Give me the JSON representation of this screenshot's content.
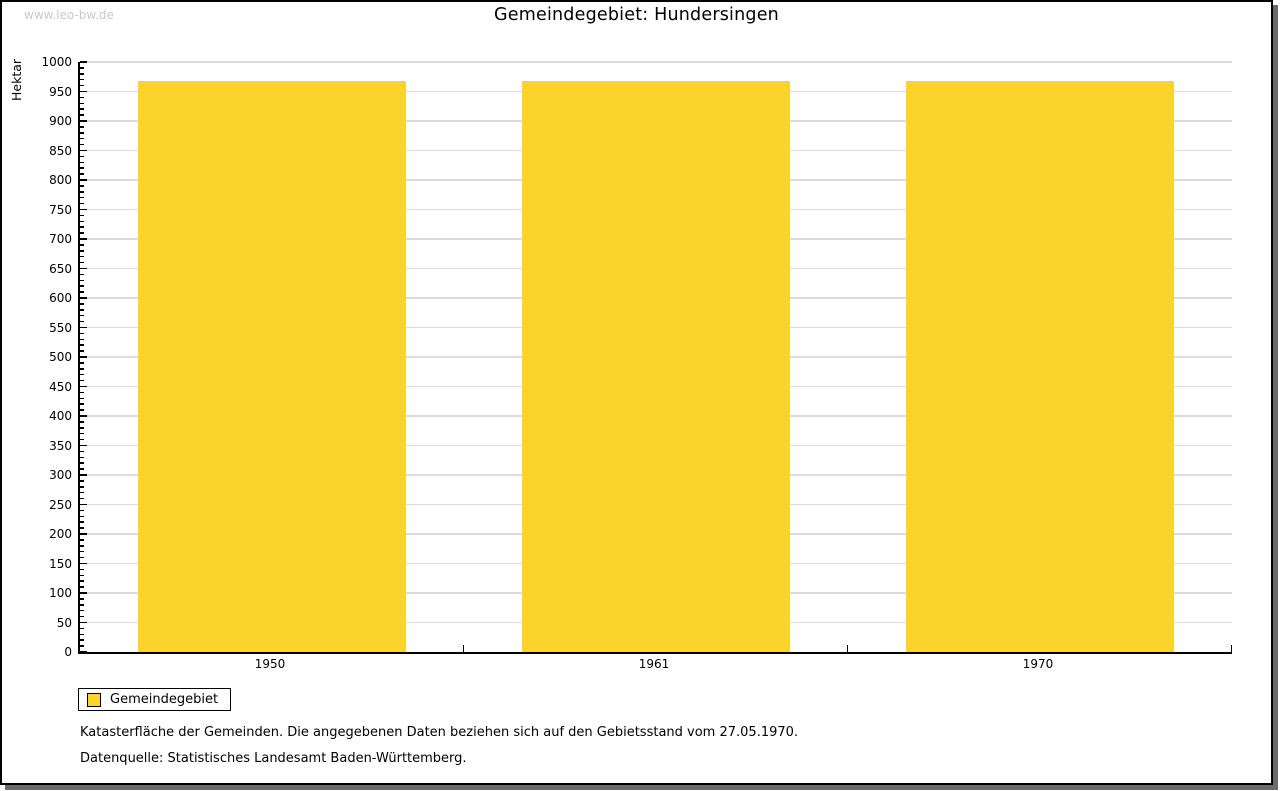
{
  "watermark": "www.leo-bw.de",
  "chart_data": {
    "type": "bar",
    "title": "Gemeindegebiet: Hundersingen",
    "ylabel": "Hektar",
    "xlabel": "",
    "categories": [
      "1950",
      "1961",
      "1970"
    ],
    "series": [
      {
        "name": "Gemeindegebiet",
        "color": "#fcd32b",
        "values": [
          968,
          968,
          968
        ]
      }
    ],
    "ylim": [
      0,
      1000
    ],
    "ytick_step": 50,
    "yminor_step": 10,
    "grid": true,
    "legend_position": "bottom-left"
  },
  "notes": [
    "Katasterfläche der Gemeinden. Die angegebenen Daten beziehen sich auf den Gebietsstand vom 27.05.1970.",
    "Datenquelle: Statistisches Landesamt Baden-Württemberg."
  ],
  "colors": {
    "bar": "#fcd32b",
    "grid": "#dcdcdc",
    "axis": "#000000",
    "watermark": "#c9c9c9",
    "frame_shadow": "#6a6a6a"
  }
}
